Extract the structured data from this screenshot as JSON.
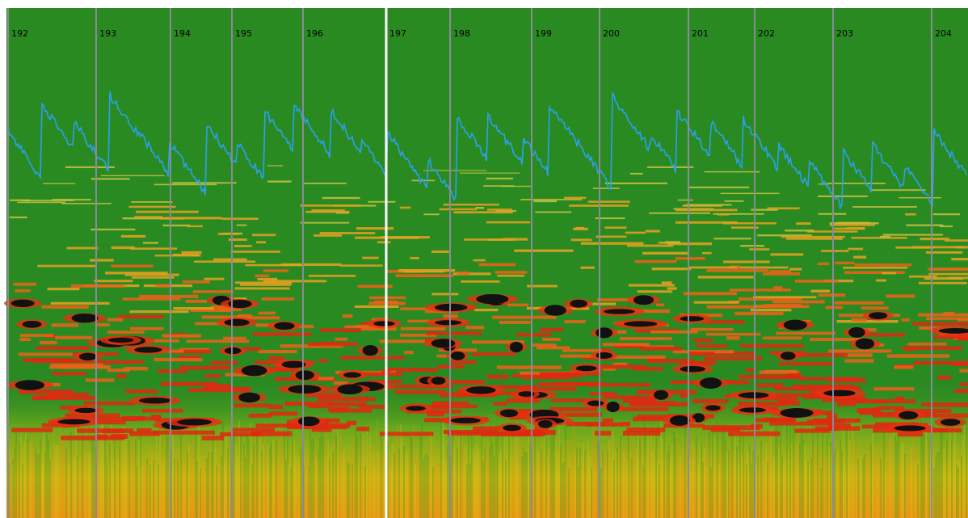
{
  "bar_numbers": [
    "192",
    "193",
    "194",
    "195",
    "196",
    "197",
    "198",
    "199",
    "200",
    "201",
    "202",
    "203",
    "204"
  ]
}
